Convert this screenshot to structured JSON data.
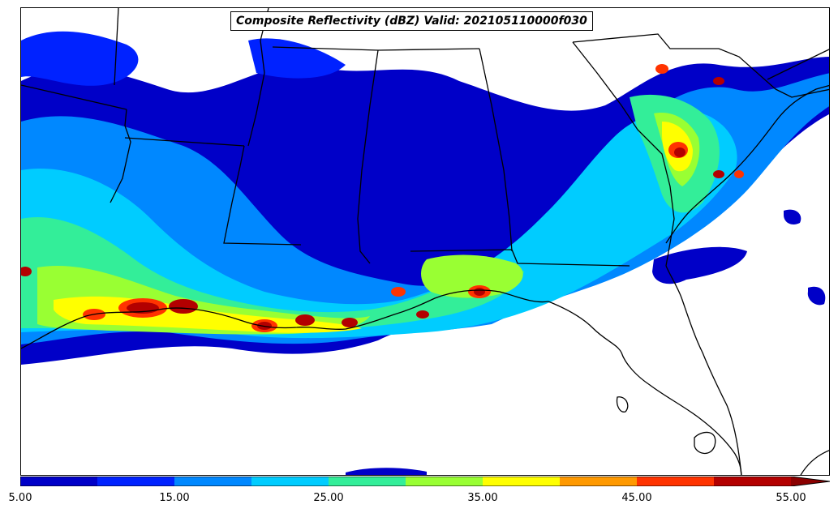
{
  "title": "Composite Reflectivity (dBZ) Valid: 202105110000f030",
  "colorbar": {
    "colors": [
      "#0000c8",
      "#0022ff",
      "#0088ff",
      "#00ccff",
      "#33ee99",
      "#99ff33",
      "#ffff00",
      "#ff9900",
      "#ff3300",
      "#b30000"
    ],
    "extend_color": "#8b0000",
    "tick_labels": [
      "5.00",
      "15.00",
      "25.00",
      "35.00",
      "45.00",
      "55.00"
    ],
    "min": 5,
    "max": 55,
    "bin_width": 5
  },
  "map": {
    "variable": "Composite Reflectivity",
    "units": "dBZ",
    "region": "Southeastern United States",
    "features": [
      "state-borders",
      "coastline"
    ]
  }
}
